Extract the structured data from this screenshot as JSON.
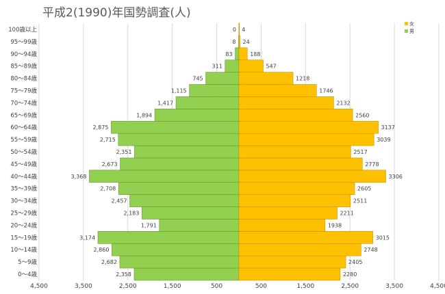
{
  "chart_data": {
    "type": "bar",
    "orientation": "horizontal",
    "title": "平成2(1990)年国勢調査(人)",
    "categories": [
      "0～4歳",
      "5～9歳",
      "10～14歳",
      "15～19歳",
      "20～24歳",
      "25～29歳",
      "30～34歳",
      "35～39歳",
      "40～44歳",
      "45～49歳",
      "50～54歳",
      "55～59歳",
      "60～64歳",
      "65～69歳",
      "70～74歳",
      "75～79歳",
      "80～84歳",
      "85～89歳",
      "90～94歳",
      "95～99歳",
      "100歳以上"
    ],
    "series": [
      {
        "name": "男",
        "color": "#92d050",
        "values": [
          2358,
          2682,
          2860,
          3174,
          1791,
          2183,
          2457,
          2708,
          3368,
          2673,
          2351,
          2715,
          2875,
          1894,
          1417,
          1115,
          745,
          311,
          83,
          8,
          0
        ],
        "labels": [
          "2,358",
          "2,682",
          "2,860",
          "3,174",
          "1,791",
          "2,183",
          "2,457",
          "2,708",
          "3,368",
          "2,673",
          "2,351",
          "2,715",
          "2,875",
          "1,894",
          "1,417",
          "1,115",
          "745",
          "311",
          "83",
          "8",
          "0"
        ]
      },
      {
        "name": "女",
        "color": "#ffc000",
        "values": [
          2280,
          2405,
          2748,
          3015,
          1938,
          2211,
          2511,
          2605,
          3306,
          2778,
          2517,
          3039,
          3137,
          2560,
          2132,
          1746,
          1218,
          547,
          188,
          24,
          4
        ],
        "labels": [
          "2280",
          "2405",
          "2748",
          "3015",
          "1938",
          "2211",
          "2511",
          "2605",
          "3306",
          "2778",
          "2517",
          "3039",
          "3137",
          "2560",
          "2132",
          "1746",
          "1218",
          "547",
          "188",
          "24",
          "4"
        ]
      }
    ],
    "x_axis": {
      "ticks": [
        -4500,
        -3500,
        -2500,
        -1500,
        -500,
        500,
        1500,
        2500,
        3500,
        4500
      ],
      "tick_labels": [
        "4,500",
        "3,500",
        "2,500",
        "1,500",
        "500",
        "500",
        "1,500",
        "2,500",
        "3,500",
        "4,500"
      ],
      "range": [
        -4500,
        4500
      ]
    },
    "legend": {
      "position": "top-right",
      "items": [
        "女",
        "男"
      ]
    },
    "grid": true
  }
}
